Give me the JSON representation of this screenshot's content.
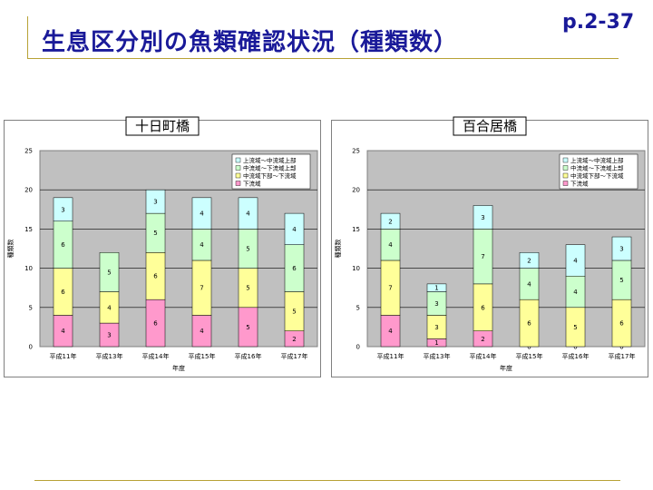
{
  "page": {
    "title": "生息区分別の魚類確認状況（種類数）",
    "page_number": "p.2-37"
  },
  "colors": {
    "plot_bg": "#c0c0c0",
    "series": [
      "#ff99cc",
      "#ffff99",
      "#ccffcc",
      "#ccffff"
    ]
  },
  "chart_data": [
    {
      "type": "bar",
      "stacked": true,
      "title": "十日町橋",
      "xlabel": "年度",
      "ylabel": "種類数",
      "ylim": [
        0,
        25
      ],
      "yticks": [
        "0",
        "5",
        "10",
        "15",
        "20",
        "25"
      ],
      "categories": [
        "平成11年",
        "平成13年",
        "平成14年",
        "平成15年",
        "平成16年",
        "平成17年"
      ],
      "series": [
        {
          "name": "下流域",
          "values": [
            4,
            3,
            6,
            4,
            5,
            2
          ]
        },
        {
          "name": "中流域下部～下流域",
          "values": [
            6,
            4,
            6,
            7,
            5,
            5
          ]
        },
        {
          "name": "中流域～下流域上部",
          "values": [
            6,
            5,
            5,
            4,
            5,
            6
          ]
        },
        {
          "name": "上流域～中流域上部",
          "values": [
            3,
            0,
            3,
            4,
            4,
            4
          ]
        }
      ],
      "legend": "top-right",
      "grid": true
    },
    {
      "type": "bar",
      "stacked": true,
      "title": "百合居橋",
      "xlabel": "年度",
      "ylabel": "種類数",
      "ylim": [
        0,
        25
      ],
      "yticks": [
        "0",
        "5",
        "10",
        "15",
        "20",
        "25"
      ],
      "categories": [
        "平成11年",
        "平成13年",
        "平成14年",
        "平成15年",
        "平成16年",
        "平成17年"
      ],
      "series": [
        {
          "name": "下流域",
          "values": [
            4,
            1,
            2,
            0,
            0,
            0
          ]
        },
        {
          "name": "中流域下部～下流域",
          "values": [
            7,
            3,
            6,
            6,
            5,
            6
          ]
        },
        {
          "name": "中流域～下流域上部",
          "values": [
            4,
            3,
            7,
            4,
            4,
            5
          ]
        },
        {
          "name": "上流域～中流域上部",
          "values": [
            2,
            1,
            3,
            2,
            4,
            3
          ]
        }
      ],
      "legend": "top-right",
      "grid": true
    }
  ]
}
